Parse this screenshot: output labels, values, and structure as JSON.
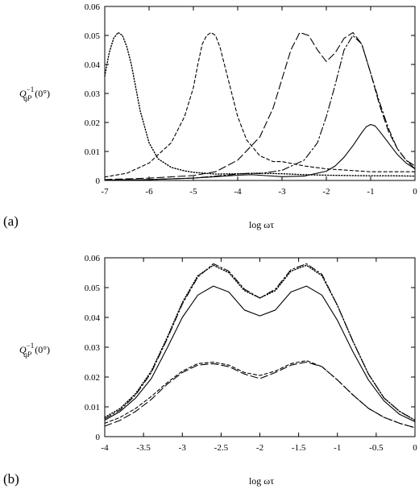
{
  "chart_data": [
    {
      "type": "line",
      "panel_label": "(a)",
      "ylabel": "Q_qP^{-1} (0°)",
      "xlabel": "log ωτ",
      "xlim": [
        -7,
        0
      ],
      "ylim": [
        0,
        0.06
      ],
      "xticks": [
        -7,
        -6,
        -5,
        -4,
        -3,
        -2,
        -1,
        0
      ],
      "xtick_labels": [
        "-7",
        "-6",
        "-5",
        "-4",
        "-3",
        "-2",
        "-1",
        "0"
      ],
      "yticks": [
        0,
        0.01,
        0.02,
        0.03,
        0.04,
        0.05,
        0.06
      ],
      "ytick_labels": [
        "0",
        "0.01",
        "0.02",
        "0.03",
        "0.04",
        "0.05",
        "0.06"
      ],
      "series": [
        {
          "style": "dotted",
          "x": [
            -7,
            -6.9,
            -6.8,
            -6.7,
            -6.6,
            -6.5,
            -6.4,
            -6.3,
            -6.2,
            -6.0,
            -5.8,
            -5.5,
            -5.2,
            -5.0,
            -4.5,
            -4.0,
            -3.5,
            -3.0,
            -2.5,
            -2.0,
            -1.5,
            -1.0,
            -0.5,
            0
          ],
          "y": [
            0.036,
            0.044,
            0.049,
            0.051,
            0.05,
            0.046,
            0.04,
            0.032,
            0.024,
            0.013,
            0.0075,
            0.0045,
            0.0033,
            0.0028,
            0.0022,
            0.0023,
            0.0025,
            0.0023,
            0.002,
            0.0018,
            0.0017,
            0.0016,
            0.0016,
            0.0015
          ]
        },
        {
          "style": "short-dashed",
          "x": [
            -7,
            -6.5,
            -6.0,
            -5.5,
            -5.2,
            -5.0,
            -4.9,
            -4.8,
            -4.7,
            -4.6,
            -4.5,
            -4.4,
            -4.3,
            -4.2,
            -4.0,
            -3.8,
            -3.5,
            -3.2,
            -3.0,
            -2.5,
            -2.0,
            -1.5,
            -1.0,
            -0.5,
            0
          ],
          "y": [
            0.0012,
            0.0025,
            0.006,
            0.013,
            0.022,
            0.032,
            0.04,
            0.047,
            0.05,
            0.051,
            0.05,
            0.046,
            0.04,
            0.034,
            0.022,
            0.014,
            0.0085,
            0.0065,
            0.0065,
            0.005,
            0.004,
            0.0035,
            0.003,
            0.003,
            0.003
          ]
        },
        {
          "style": "long-dashed",
          "x": [
            -7,
            -6,
            -5,
            -4.5,
            -4.0,
            -3.5,
            -3.2,
            -3.0,
            -2.8,
            -2.6,
            -2.4,
            -2.2,
            -2.0,
            -1.8,
            -1.6,
            -1.4,
            -1.2,
            -1.0,
            -0.8,
            -0.6,
            -0.4,
            -0.2,
            0
          ],
          "y": [
            0.0003,
            0.0008,
            0.0017,
            0.003,
            0.007,
            0.015,
            0.025,
            0.035,
            0.045,
            0.051,
            0.05,
            0.045,
            0.041,
            0.044,
            0.049,
            0.051,
            0.047,
            0.037,
            0.026,
            0.017,
            0.011,
            0.007,
            0.005
          ]
        },
        {
          "style": "dash-dot",
          "x": [
            -7,
            -6,
            -5,
            -4.0,
            -3.7,
            -3.5,
            -3.0,
            -2.5,
            -2.2,
            -2.0,
            -1.8,
            -1.6,
            -1.4,
            -1.2,
            -1.0,
            -0.8,
            -0.6,
            -0.4,
            -0.2,
            0
          ],
          "y": [
            0.0001,
            0.0003,
            0.0008,
            0.0022,
            0.0025,
            0.0024,
            0.0035,
            0.007,
            0.013,
            0.022,
            0.033,
            0.045,
            0.05,
            0.047,
            0.037,
            0.027,
            0.018,
            0.011,
            0.007,
            0.004
          ]
        },
        {
          "style": "solid",
          "x": [
            -7,
            -6,
            -5,
            -4.5,
            -4.0,
            -3.7,
            -3.5,
            -3.0,
            -2.5,
            -2.0,
            -1.8,
            -1.6,
            -1.4,
            -1.2,
            -1.1,
            -1.0,
            -0.9,
            -0.8,
            -0.6,
            -0.4,
            -0.2,
            0
          ],
          "y": [
            0.0001,
            0.0003,
            0.0008,
            0.0013,
            0.0018,
            0.002,
            0.0018,
            0.0013,
            0.0015,
            0.0032,
            0.005,
            0.008,
            0.012,
            0.0165,
            0.0185,
            0.0193,
            0.0188,
            0.017,
            0.013,
            0.009,
            0.006,
            0.004
          ]
        }
      ]
    },
    {
      "type": "line",
      "panel_label": "(b)",
      "ylabel": "Q_qP^{-1} (0°)",
      "xlabel": "log ωτ",
      "xlim": [
        -4,
        0
      ],
      "ylim": [
        0,
        0.06
      ],
      "xticks": [
        -4,
        -3.5,
        -3,
        -2.5,
        -2,
        -1.5,
        -1,
        -0.5,
        0
      ],
      "xtick_labels": [
        "-4",
        "-3.5",
        "-3",
        "-2.5",
        "-2",
        "-1.5",
        "-1",
        "-0.5",
        "0"
      ],
      "yticks": [
        0,
        0.01,
        0.02,
        0.03,
        0.04,
        0.05,
        0.06
      ],
      "ytick_labels": [
        "0",
        "0.01",
        "0.02",
        "0.03",
        "0.04",
        "0.05",
        "0.06"
      ],
      "series": [
        {
          "style": "dotted",
          "x": [
            -4,
            -3.8,
            -3.6,
            -3.4,
            -3.2,
            -3.0,
            -2.8,
            -2.6,
            -2.4,
            -2.2,
            -2.0,
            -1.8,
            -1.6,
            -1.4,
            -1.2,
            -1.0,
            -0.8,
            -0.6,
            -0.4,
            -0.2,
            0
          ],
          "y": [
            0.0065,
            0.0095,
            0.0145,
            0.022,
            0.033,
            0.045,
            0.054,
            0.0575,
            0.055,
            0.049,
            0.0465,
            0.049,
            0.0555,
            0.0575,
            0.054,
            0.044,
            0.032,
            0.021,
            0.013,
            0.0085,
            0.0055
          ]
        },
        {
          "style": "dash-dot",
          "x": [
            -4,
            -3.8,
            -3.6,
            -3.4,
            -3.2,
            -3.0,
            -2.8,
            -2.6,
            -2.4,
            -2.2,
            -2.0,
            -1.8,
            -1.6,
            -1.4,
            -1.2,
            -1.0,
            -0.8,
            -0.6,
            -0.4,
            -0.2,
            0
          ],
          "y": [
            0.006,
            0.009,
            0.014,
            0.0215,
            0.0325,
            0.0445,
            0.0535,
            0.058,
            0.0555,
            0.0495,
            0.0465,
            0.0495,
            0.056,
            0.058,
            0.0545,
            0.044,
            0.032,
            0.021,
            0.013,
            0.0085,
            0.0055
          ]
        },
        {
          "style": "solid",
          "x": [
            -4,
            -3.8,
            -3.6,
            -3.4,
            -3.2,
            -3.0,
            -2.8,
            -2.6,
            -2.4,
            -2.2,
            -2.0,
            -1.8,
            -1.6,
            -1.4,
            -1.2,
            -1.0,
            -0.8,
            -0.6,
            -0.4,
            -0.2,
            0
          ],
          "y": [
            0.0055,
            0.0085,
            0.013,
            0.0195,
            0.0295,
            0.04,
            0.0475,
            0.0505,
            0.0485,
            0.0425,
            0.0405,
            0.0425,
            0.0485,
            0.0505,
            0.0475,
            0.039,
            0.0285,
            0.019,
            0.012,
            0.0075,
            0.005
          ]
        },
        {
          "style": "short-dashed",
          "x": [
            -4,
            -3.8,
            -3.6,
            -3.4,
            -3.2,
            -3.0,
            -2.8,
            -2.6,
            -2.4,
            -2.2,
            -2.0,
            -1.8,
            -1.6,
            -1.4,
            -1.2,
            -1.0,
            -0.8,
            -0.6,
            -0.4,
            -0.2,
            0
          ],
          "y": [
            0.0045,
            0.0065,
            0.0095,
            0.0135,
            0.018,
            0.022,
            0.0245,
            0.025,
            0.024,
            0.0215,
            0.0205,
            0.022,
            0.0245,
            0.0255,
            0.0235,
            0.019,
            0.014,
            0.0095,
            0.0065,
            0.0045,
            0.003
          ]
        },
        {
          "style": "long-dashed",
          "x": [
            -4,
            -3.8,
            -3.6,
            -3.4,
            -3.2,
            -3.0,
            -2.8,
            -2.6,
            -2.4,
            -2.2,
            -2.0,
            -1.8,
            -1.6,
            -1.4,
            -1.2,
            -1.0,
            -0.8,
            -0.6,
            -0.4,
            -0.2,
            0
          ],
          "y": [
            0.0035,
            0.0055,
            0.0085,
            0.0125,
            0.0175,
            0.0215,
            0.024,
            0.0245,
            0.0235,
            0.021,
            0.0195,
            0.0215,
            0.024,
            0.025,
            0.0235,
            0.019,
            0.014,
            0.0095,
            0.0065,
            0.0045,
            0.003
          ]
        }
      ]
    }
  ]
}
